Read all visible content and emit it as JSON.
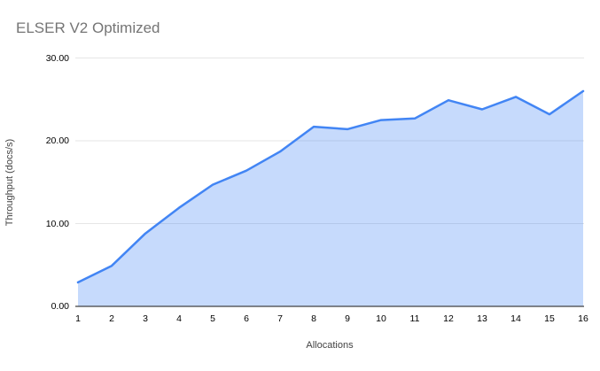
{
  "chart": {
    "background": "#ffffff",
    "title_color": "#757575",
    "line_color": "#4285f4",
    "fill_color": "rgba(66,133,244,0.30)",
    "gridline_color": "#e6e6e6",
    "axis_line_color": "#424242",
    "tick_label_color": "#000000",
    "axis_title_color": "#424242"
  },
  "chart_data": {
    "type": "area",
    "title": "ELSER V2 Optimized",
    "xlabel": "Allocations",
    "ylabel": "Throughput (docs/s)",
    "x": [
      1,
      2,
      3,
      4,
      5,
      6,
      7,
      8,
      9,
      10,
      11,
      12,
      13,
      14,
      15,
      16
    ],
    "series": [
      {
        "name": "Throughput (docs/s)",
        "values": [
          2.9,
          4.9,
          8.8,
          11.9,
          14.7,
          16.4,
          18.7,
          21.7,
          21.4,
          22.5,
          22.7,
          24.9,
          23.8,
          25.3,
          23.2,
          26.0
        ]
      }
    ],
    "ylim": [
      0,
      30
    ],
    "yticks": [
      0,
      10,
      20,
      30
    ],
    "ytick_labels": [
      "0.00",
      "10.00",
      "20.00",
      "30.00"
    ],
    "xlim": [
      1,
      16
    ],
    "grid": true,
    "legend": "none"
  }
}
